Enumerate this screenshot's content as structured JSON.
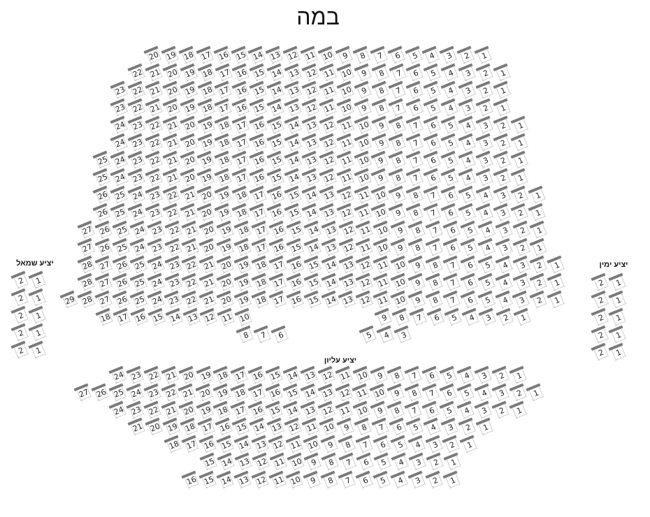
{
  "stage": {
    "label": "במה"
  },
  "colors": {
    "seat_bar": "#7a7a7a",
    "seat_border": "#999999",
    "text": "#222222"
  },
  "sections": {
    "main": {
      "label": "",
      "rows": [
        [
          [
            20,
            1
          ]
        ],
        [
          [
            22,
            1
          ]
        ],
        [
          [
            23,
            1
          ]
        ],
        [
          [
            23,
            1
          ]
        ],
        [
          [
            24,
            1
          ]
        ],
        [
          [
            24,
            1
          ]
        ],
        [
          [
            25,
            1
          ]
        ],
        [
          [
            25,
            1
          ]
        ],
        [
          [
            26,
            1
          ]
        ],
        [
          [
            26,
            1
          ]
        ],
        [
          [
            27,
            1
          ]
        ],
        [
          [
            27,
            1
          ]
        ],
        [
          [
            28,
            1
          ]
        ],
        [
          [
            28,
            1
          ]
        ],
        [
          [
            29,
            1
          ]
        ],
        [
          [
            18,
            10
          ],
          [
            9,
            1
          ]
        ],
        [
          [
            8,
            6
          ],
          [
            5,
            3
          ]
        ]
      ]
    },
    "left": {
      "label": "יציע שמאל",
      "rows": [
        [
          [
            2,
            1
          ]
        ],
        [
          [
            2,
            1
          ]
        ],
        [
          [
            2,
            1
          ]
        ],
        [
          [
            2,
            1
          ]
        ],
        [
          [
            2,
            1
          ]
        ]
      ]
    },
    "right": {
      "label": "יציע ימין",
      "rows": [
        [
          [
            2,
            1
          ]
        ],
        [
          [
            2,
            1
          ]
        ],
        [
          [
            2,
            1
          ]
        ],
        [
          [
            2,
            1
          ]
        ],
        [
          [
            2,
            1
          ]
        ]
      ]
    },
    "balcony": {
      "label": "יציע עליון",
      "rows": [
        [
          [
            24,
            1
          ]
        ],
        [
          [
            27,
            1
          ]
        ],
        [
          [
            24,
            1
          ]
        ],
        [
          [
            21,
            1
          ]
        ],
        [
          [
            18,
            1
          ]
        ],
        [
          [
            15,
            1
          ]
        ],
        [
          [
            16,
            1
          ]
        ]
      ]
    }
  }
}
